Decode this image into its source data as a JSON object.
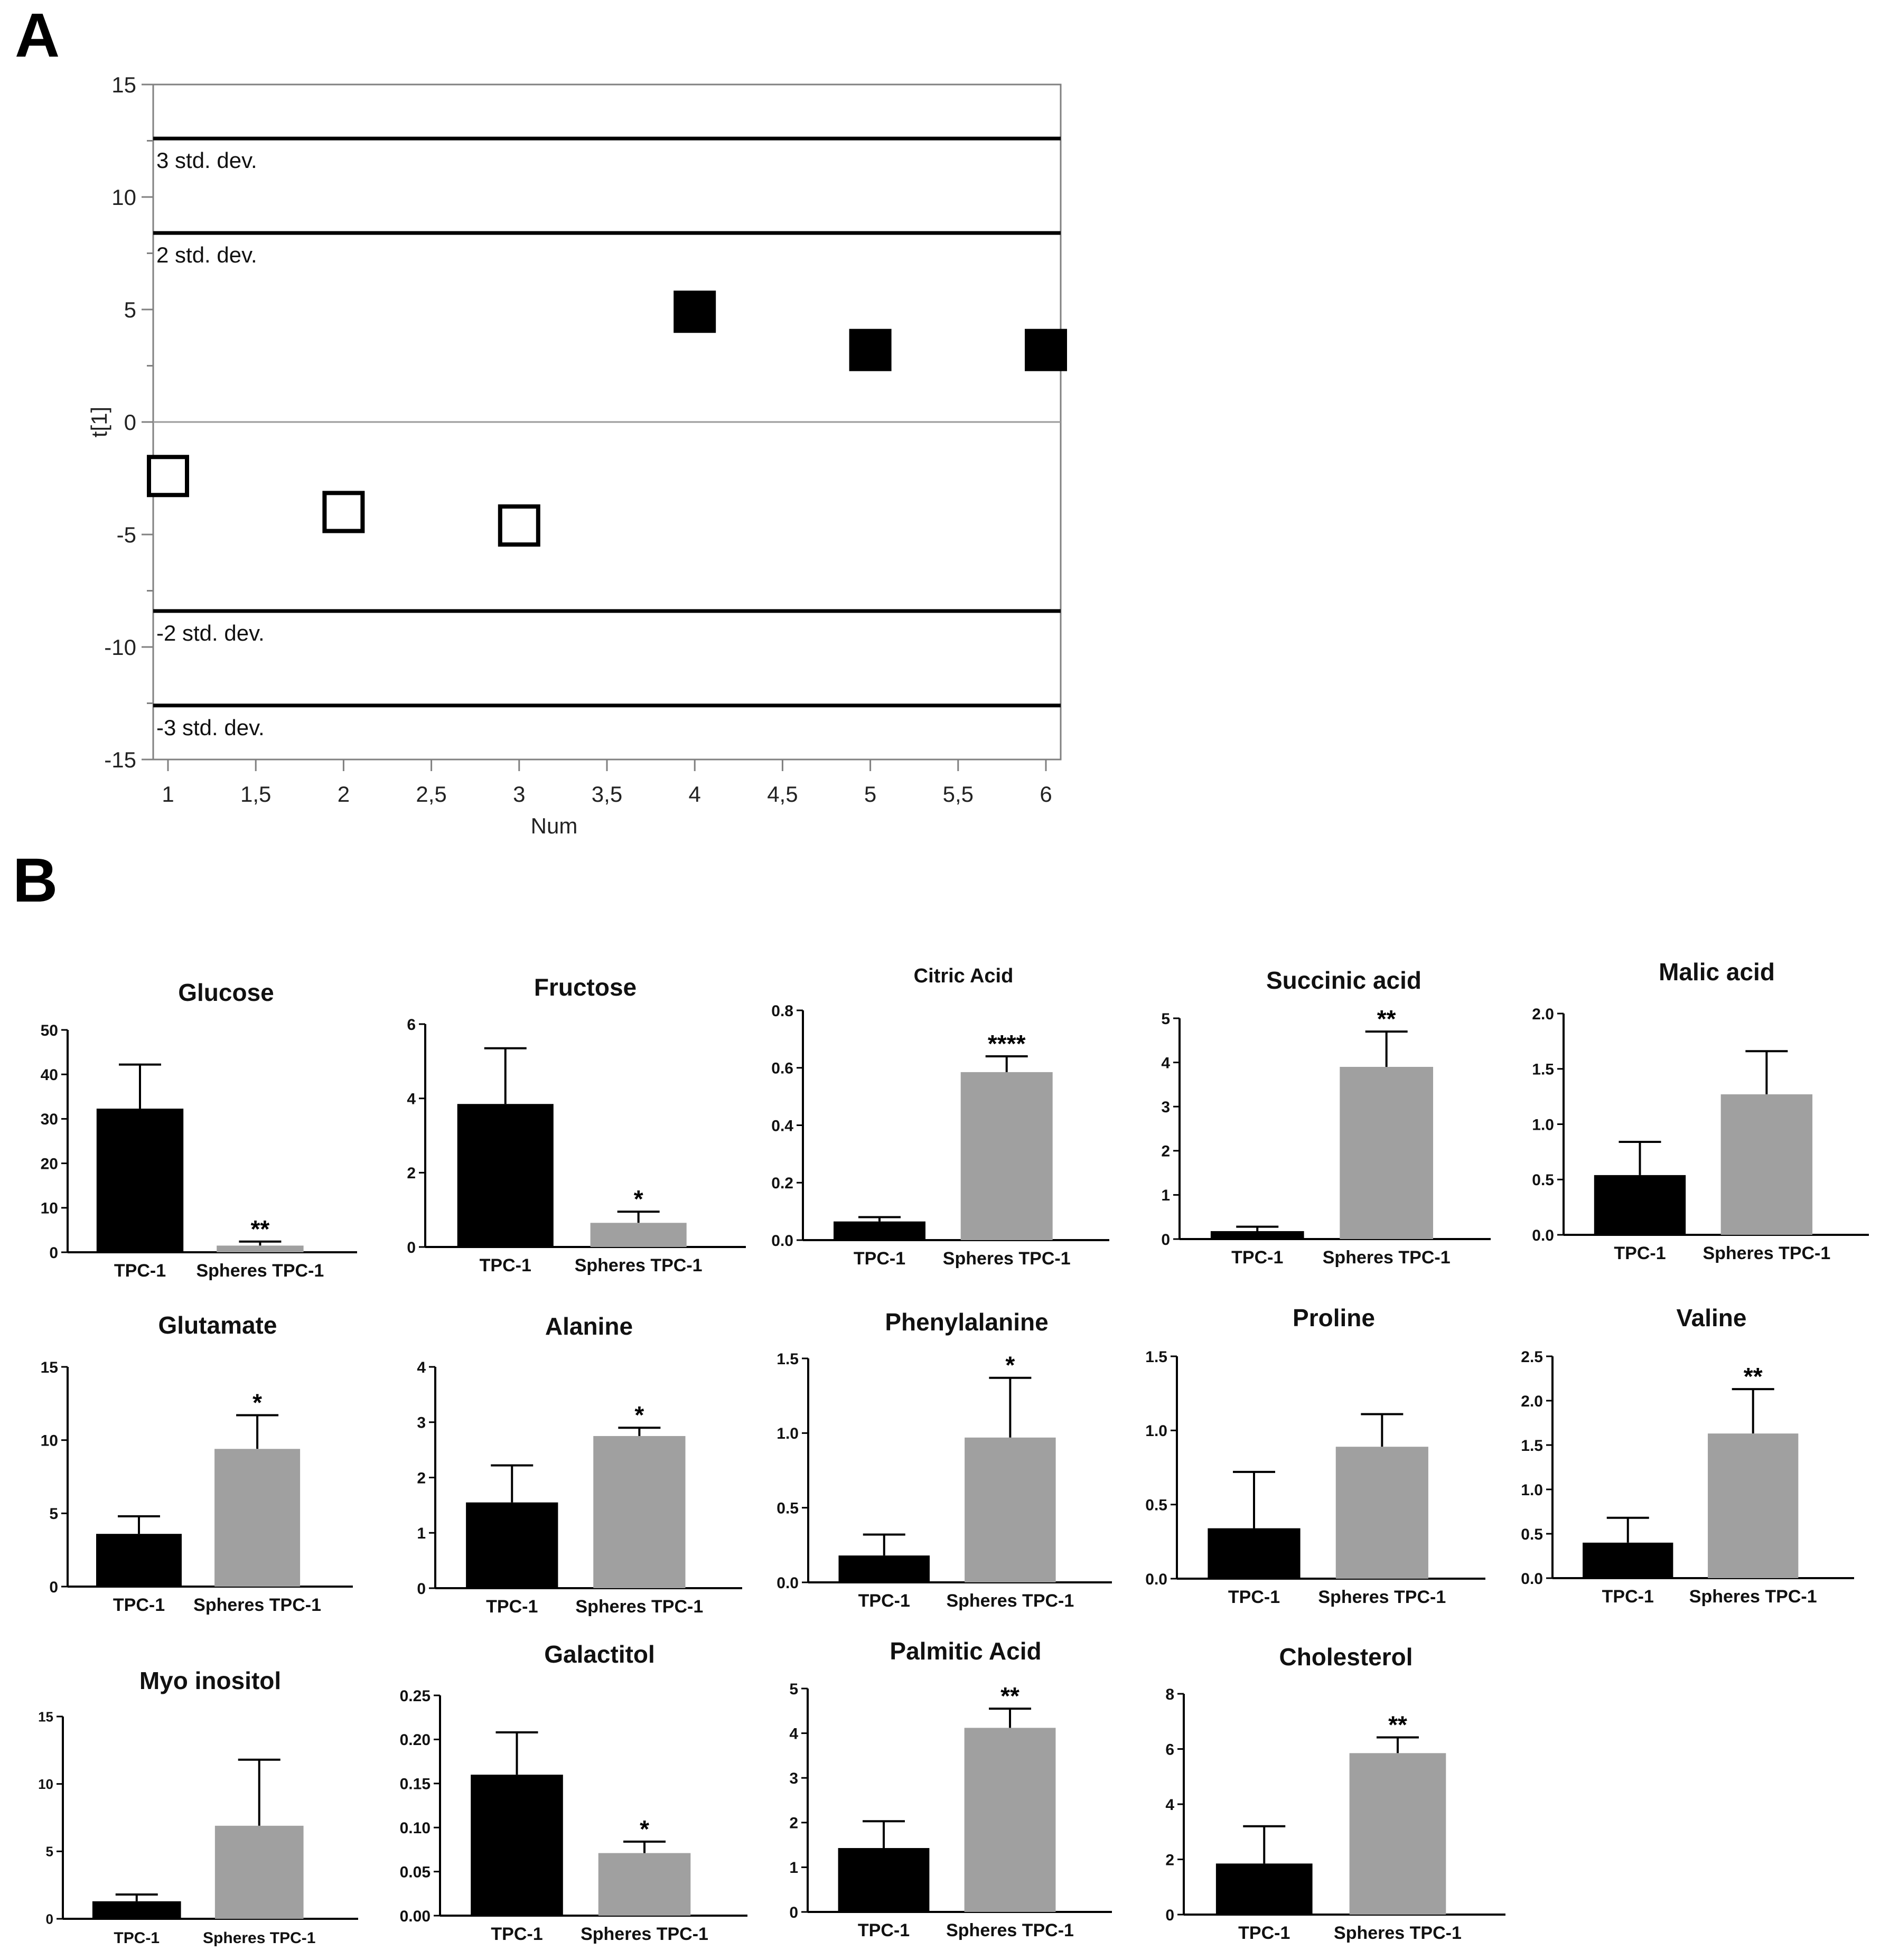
{
  "panel_labels": {
    "a": "A",
    "b": "B"
  },
  "colors": {
    "tpc": "#000000",
    "spheres": "#a0a0a0",
    "axis": "#000000",
    "frame": "#808080"
  },
  "chart_data": [
    {
      "id": "scores",
      "type": "scatter",
      "title": "",
      "xlabel": "Num",
      "ylabel": "t[1]",
      "xlim": [
        1,
        6
      ],
      "ylim": [
        -15,
        15
      ],
      "xticks": [
        "1",
        "1,5",
        "2",
        "2,5",
        "3",
        "3,5",
        "4",
        "4,5",
        "5",
        "5,5",
        "6"
      ],
      "yticks": [
        "15",
        "10",
        "5",
        "0",
        "-5",
        "-10",
        "-15"
      ],
      "reference_lines": [
        {
          "y": 12.6,
          "label": "3 std. dev."
        },
        {
          "y": 8.4,
          "label": "2 std. dev."
        },
        {
          "y": -8.4,
          "label": "-2 std. dev."
        },
        {
          "y": -12.6,
          "label": "-3 std. dev."
        }
      ],
      "series": [
        {
          "name": "TPC-1",
          "marker": "open-square",
          "x": [
            1,
            2,
            3
          ],
          "y": [
            -2.4,
            -4.0,
            -4.6
          ]
        },
        {
          "name": "Spheres TPC-1",
          "marker": "filled-square",
          "x": [
            4,
            5,
            6
          ],
          "y": [
            4.9,
            3.2,
            3.2
          ]
        }
      ]
    },
    {
      "id": "glucose",
      "type": "bar",
      "title": "Glucose",
      "categories": [
        "TPC-1",
        "Spheres TPC-1"
      ],
      "values": [
        32.3,
        1.5
      ],
      "errors": [
        9.9,
        0.9
      ],
      "significance": [
        "",
        "**"
      ],
      "ylim": [
        0,
        50
      ],
      "yticks": [
        "0",
        "10",
        "20",
        "30",
        "40",
        "50"
      ]
    },
    {
      "id": "fructose",
      "type": "bar",
      "title": "Fructose",
      "categories": [
        "TPC-1",
        "Spheres TPC-1"
      ],
      "values": [
        3.85,
        0.65
      ],
      "errors": [
        1.5,
        0.3
      ],
      "significance": [
        "",
        "*"
      ],
      "ylim": [
        0,
        6
      ],
      "yticks": [
        "0",
        "2",
        "4",
        "6"
      ]
    },
    {
      "id": "citric",
      "type": "bar",
      "title": "Citric Acid",
      "categories": [
        "TPC-1",
        "Spheres TPC-1"
      ],
      "values": [
        0.065,
        0.585
      ],
      "errors": [
        0.015,
        0.055
      ],
      "significance": [
        "",
        "****"
      ],
      "ylim": [
        0,
        0.8
      ],
      "yticks": [
        "0.0",
        "0.2",
        "0.4",
        "0.6",
        "0.8"
      ]
    },
    {
      "id": "succinic",
      "type": "bar",
      "title": "Succinic acid",
      "categories": [
        "TPC-1",
        "Spheres TPC-1"
      ],
      "values": [
        0.18,
        3.9
      ],
      "errors": [
        0.1,
        0.8
      ],
      "significance": [
        "",
        "**"
      ],
      "ylim": [
        0,
        5
      ],
      "yticks": [
        "0",
        "1",
        "2",
        "3",
        "4",
        "5"
      ]
    },
    {
      "id": "malic",
      "type": "bar",
      "title": "Malic acid",
      "categories": [
        "TPC-1",
        "Spheres TPC-1"
      ],
      "values": [
        0.54,
        1.27
      ],
      "errors": [
        0.3,
        0.39
      ],
      "significance": [
        "",
        ""
      ],
      "ylim": [
        0,
        2
      ],
      "yticks": [
        "0.0",
        "0.5",
        "1.0",
        "1.5",
        "2.0"
      ]
    },
    {
      "id": "glutamate",
      "type": "bar",
      "title": "Glutamate",
      "categories": [
        "TPC-1",
        "Spheres TPC-1"
      ],
      "values": [
        3.6,
        9.4
      ],
      "errors": [
        1.2,
        2.3
      ],
      "significance": [
        "",
        "*"
      ],
      "ylim": [
        0,
        15
      ],
      "yticks": [
        "0",
        "5",
        "10",
        "15"
      ]
    },
    {
      "id": "alanine",
      "type": "bar",
      "title": "Alanine",
      "categories": [
        "TPC-1",
        "Spheres TPC-1"
      ],
      "values": [
        1.55,
        2.75
      ],
      "errors": [
        0.67,
        0.15
      ],
      "significance": [
        "",
        "*"
      ],
      "ylim": [
        0,
        4
      ],
      "yticks": [
        "0",
        "1",
        "2",
        "3",
        "4"
      ]
    },
    {
      "id": "phenylalanine",
      "type": "bar",
      "title": "Phenylalanine",
      "categories": [
        "TPC-1",
        "Spheres TPC-1"
      ],
      "values": [
        0.18,
        0.97
      ],
      "errors": [
        0.14,
        0.4
      ],
      "significance": [
        "",
        "*"
      ],
      "ylim": [
        0,
        1.5
      ],
      "yticks": [
        "0.0",
        "0.5",
        "1.0",
        "1.5"
      ]
    },
    {
      "id": "proline",
      "type": "bar",
      "title": "Proline",
      "categories": [
        "TPC-1",
        "Spheres TPC-1"
      ],
      "values": [
        0.34,
        0.89
      ],
      "errors": [
        0.38,
        0.22
      ],
      "significance": [
        "",
        ""
      ],
      "ylim": [
        0,
        1.5
      ],
      "yticks": [
        "0.0",
        "0.5",
        "1.0",
        "1.5"
      ]
    },
    {
      "id": "valine",
      "type": "bar",
      "title": "Valine",
      "categories": [
        "TPC-1",
        "Spheres TPC-1"
      ],
      "values": [
        0.4,
        1.63
      ],
      "errors": [
        0.28,
        0.5
      ],
      "significance": [
        "",
        "**"
      ],
      "ylim": [
        0,
        2.5
      ],
      "yticks": [
        "0.0",
        "0.5",
        "1.0",
        "1.5",
        "2.0",
        "2.5"
      ]
    },
    {
      "id": "myo",
      "type": "bar",
      "title": "Myo inositol",
      "categories": [
        "TPC-1",
        "Spheres TPC-1"
      ],
      "values": [
        1.3,
        6.9
      ],
      "errors": [
        0.5,
        4.9
      ],
      "significance": [
        "",
        ""
      ],
      "ylim": [
        0,
        15
      ],
      "yticks": [
        "0",
        "5",
        "10",
        "15"
      ]
    },
    {
      "id": "galactitol",
      "type": "bar",
      "title": "Galactitol",
      "categories": [
        "TPC-1",
        "Spheres TPC-1"
      ],
      "values": [
        0.16,
        0.071
      ],
      "errors": [
        0.048,
        0.013
      ],
      "significance": [
        "",
        "*"
      ],
      "ylim": [
        0,
        0.25
      ],
      "yticks": [
        "0.00",
        "0.05",
        "0.10",
        "0.15",
        "0.20",
        "0.25"
      ]
    },
    {
      "id": "palmitic",
      "type": "bar",
      "title": "Palmitic Acid",
      "categories": [
        "TPC-1",
        "Spheres TPC-1"
      ],
      "values": [
        1.43,
        4.12
      ],
      "errors": [
        0.6,
        0.43
      ],
      "significance": [
        "",
        "**"
      ],
      "ylim": [
        0,
        5
      ],
      "yticks": [
        "0",
        "1",
        "2",
        "3",
        "4",
        "5"
      ]
    },
    {
      "id": "cholesterol",
      "type": "bar",
      "title": "Cholesterol",
      "categories": [
        "TPC-1",
        "Spheres TPC-1"
      ],
      "values": [
        1.85,
        5.85
      ],
      "errors": [
        1.35,
        0.57
      ],
      "significance": [
        "",
        "**"
      ],
      "ylim": [
        0,
        8
      ],
      "yticks": [
        "0",
        "2",
        "4",
        "6",
        "8"
      ]
    }
  ]
}
